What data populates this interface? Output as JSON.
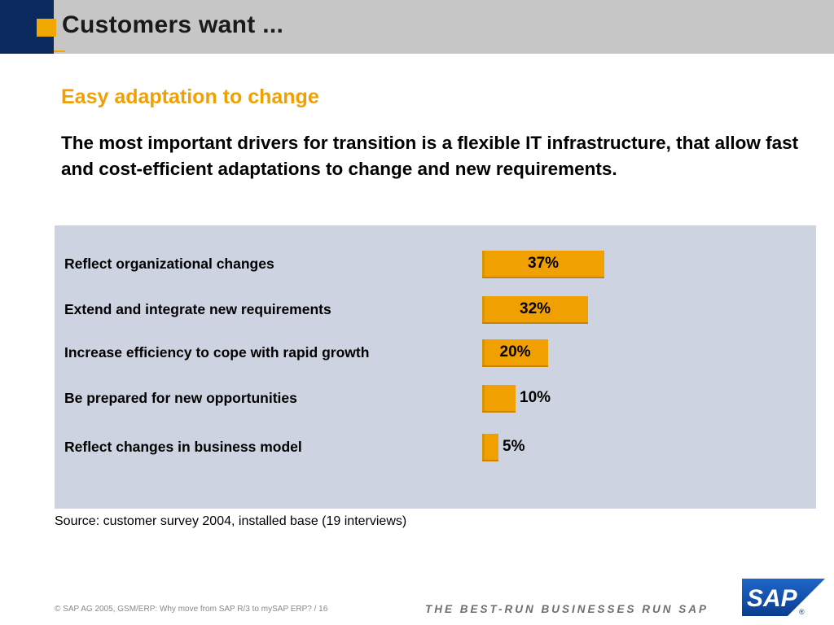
{
  "header": {
    "title": "Customers want ..."
  },
  "subtitle": "Easy adaptation to change",
  "intro": "The most important drivers for transition is a flexible IT infrastructure, that allow fast and cost-efficient adaptations to change and new requirements.",
  "chart_data": {
    "type": "bar",
    "orientation": "horizontal",
    "categories": [
      "Reflect organizational changes",
      "Extend and integrate new requirements",
      "Increase efficiency to cope with rapid growth",
      "Be prepared for new opportunities",
      "Reflect changes in business model"
    ],
    "values": [
      37,
      32,
      20,
      10,
      5
    ],
    "value_labels": [
      "37%",
      "32%",
      "20%",
      "10%",
      "5%"
    ],
    "unit": "%",
    "grid": false,
    "colors": {
      "bar": "#f0a000",
      "panel": "#cdd3e0"
    }
  },
  "source": "Source: customer survey 2004, installed base (19 interviews)",
  "footer": {
    "copyright_symbol": "©",
    "text": "SAP AG 2005, GSM/ERP: Why move from SAP R/3 to mySAP ERP?  / 16",
    "tagline": "THE BEST-RUN BUSINESSES RUN SAP"
  },
  "logo": {
    "text": "SAP",
    "trademark": "®",
    "colors": {
      "blue": "#0a3d8f"
    }
  },
  "colors": {
    "accent": "#f0a000",
    "header_band": "#c6c6c6",
    "header_blue": "#0a2a5e"
  }
}
